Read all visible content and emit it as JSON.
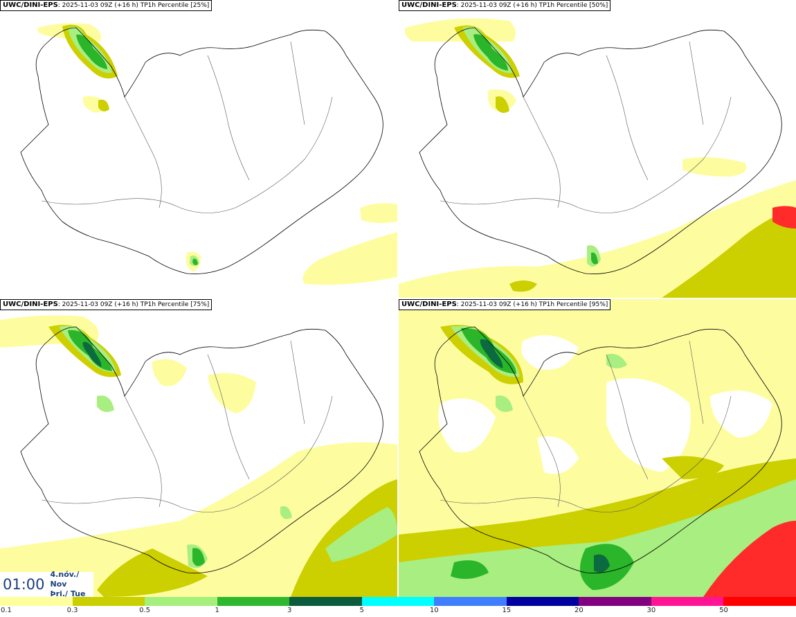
{
  "panels": [
    {
      "model": "UWC/DINI-EPS",
      "run_info": "2025-11-03 09Z (+16 h) TP1h Percentile [25%]"
    },
    {
      "model": "UWC/DINI-EPS",
      "run_info": "2025-11-03 09Z (+16 h) TP1h Percentile [50%]"
    },
    {
      "model": "UWC/DINI-EPS",
      "run_info": "2025-11-03 09Z (+16 h) TP1h Percentile [75%]"
    },
    {
      "model": "UWC/DINI-EPS",
      "run_info": "2025-11-03 09Z (+16 h) TP1h Percentile [95%]"
    }
  ],
  "valid_time": {
    "time": "01:00",
    "date": "4.nóv./ Nov",
    "weekday": "Þri./ Tue"
  },
  "scale": {
    "labels": [
      "0.1",
      "0.3",
      "0.5",
      "1",
      "3",
      "5",
      "10",
      "15",
      "20",
      "30",
      "50"
    ],
    "colors": [
      "#ffff9e",
      "#c9cf00",
      "#a5f07c",
      "#2fb82f",
      "#0a5c3c",
      "#00ffff",
      "#3f7fff",
      "#0000a0",
      "#800080",
      "#ff1493",
      "#ff0000"
    ]
  },
  "map_colors": {
    "light": "#fdfda0",
    "olive": "#cccf00",
    "lgreen": "#a8ee80",
    "green": "#2ab52a",
    "dgreen": "#0b6a3f",
    "coast": "#000000"
  }
}
